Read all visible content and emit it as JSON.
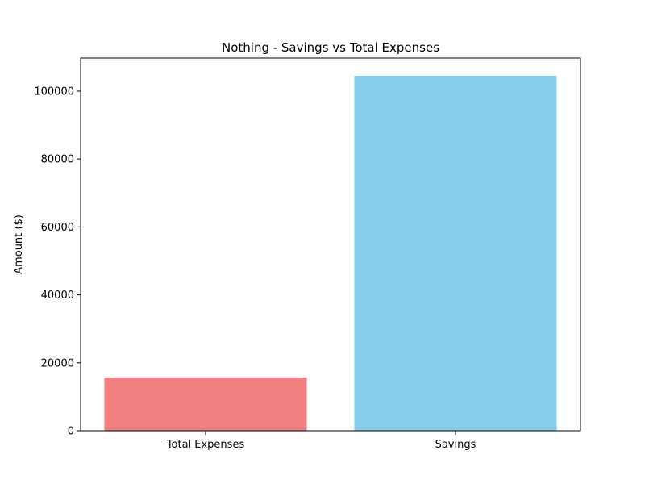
{
  "chart_data": {
    "type": "bar",
    "title": "Nothing - Savings vs Total Expenses",
    "xlabel": "",
    "ylabel": "Amount ($)",
    "categories": [
      "Total Expenses",
      "Savings"
    ],
    "values": [
      15700,
      104500
    ],
    "colors": [
      "#f08080",
      "#87ceeb"
    ],
    "ylim": [
      0,
      109725
    ],
    "yticks": [
      0,
      20000,
      40000,
      60000,
      80000,
      100000
    ],
    "grid": false,
    "legend": "none"
  }
}
